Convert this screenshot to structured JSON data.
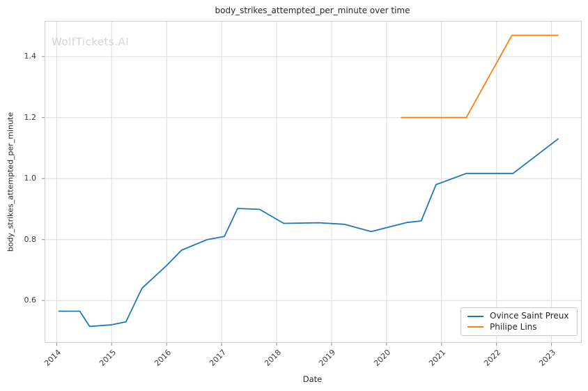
{
  "watermark": "WolfTickets.AI",
  "chart_data": {
    "type": "line",
    "title": "body_strikes_attempted_per_minute over time",
    "xlabel": "Date",
    "ylabel": "body_strikes_attempted_per_minute",
    "x_ticks": [
      2014,
      2015,
      2016,
      2017,
      2018,
      2019,
      2020,
      2021,
      2022,
      2023
    ],
    "y_ticks": [
      0.6,
      0.8,
      1.0,
      1.2,
      1.4
    ],
    "xlim": [
      2013.78,
      2023.55
    ],
    "ylim": [
      0.461,
      1.517
    ],
    "grid": true,
    "legend_position": "lower right",
    "series": [
      {
        "name": "Ovince Saint Preux",
        "color": "#1f77b4",
        "points": [
          [
            2014.04,
            0.565
          ],
          [
            2014.42,
            0.565
          ],
          [
            2014.6,
            0.515
          ],
          [
            2014.98,
            0.52
          ],
          [
            2015.26,
            0.53
          ],
          [
            2015.55,
            0.64
          ],
          [
            2016.0,
            0.715
          ],
          [
            2016.27,
            0.765
          ],
          [
            2016.74,
            0.8
          ],
          [
            2017.05,
            0.81
          ],
          [
            2017.29,
            0.902
          ],
          [
            2017.69,
            0.899
          ],
          [
            2018.13,
            0.853
          ],
          [
            2018.77,
            0.855
          ],
          [
            2019.23,
            0.85
          ],
          [
            2019.72,
            0.826
          ],
          [
            2020.37,
            0.856
          ],
          [
            2020.63,
            0.861
          ],
          [
            2020.9,
            0.98
          ],
          [
            2021.45,
            1.017
          ],
          [
            2022.3,
            1.017
          ],
          [
            2023.12,
            1.13
          ]
        ]
      },
      {
        "name": "Philipe Lins",
        "color": "#ff7f0e",
        "points": [
          [
            2020.27,
            1.2
          ],
          [
            2021.45,
            1.2
          ],
          [
            2022.28,
            1.47
          ],
          [
            2023.12,
            1.47
          ]
        ]
      }
    ]
  }
}
